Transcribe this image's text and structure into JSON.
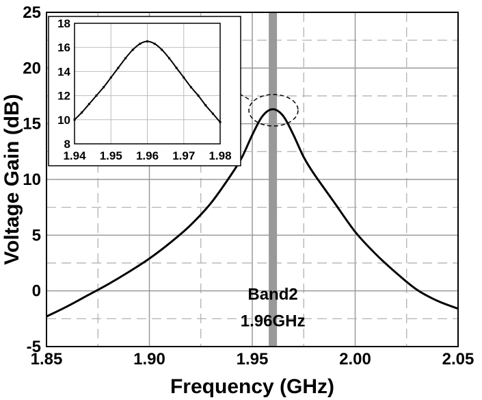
{
  "chart_data": [
    {
      "type": "line",
      "xlabel": "Frequency (GHz)",
      "ylabel": "Voltage Gain (dB)",
      "xlim": [
        1.85,
        2.05
      ],
      "ylim": [
        -5,
        25
      ],
      "x_ticks": [
        "1.85",
        "1.90",
        "1.95",
        "2.00",
        "2.05"
      ],
      "y_ticks": [
        "-5",
        "0",
        "5",
        "10",
        "15",
        "20",
        "25"
      ],
      "grid": true,
      "series": [
        {
          "x": [
            1.85,
            1.86,
            1.87,
            1.88,
            1.89,
            1.9,
            1.91,
            1.92,
            1.93,
            1.94,
            1.945,
            1.95,
            1.955,
            1.96,
            1.965,
            1.97,
            1.975,
            1.98,
            1.99,
            2.0,
            2.01,
            2.02,
            2.03,
            2.04,
            2.05
          ],
          "y": [
            -2.3,
            -1.4,
            -0.4,
            0.6,
            1.7,
            2.9,
            4.3,
            5.9,
            7.9,
            10.5,
            12.0,
            14.0,
            15.7,
            16.3,
            15.7,
            14.0,
            12.0,
            10.5,
            7.9,
            5.3,
            3.3,
            1.6,
            0.1,
            -0.9,
            -1.6
          ],
          "color": "#000000"
        }
      ],
      "annotations": [
        {
          "text": "Band2",
          "x": 1.96
        },
        {
          "text": "1.96GHz",
          "x": 1.96
        }
      ],
      "highlight_band": {
        "x": [
          1.958,
          1.962
        ],
        "color": "#999999"
      }
    },
    {
      "type": "line",
      "inset": true,
      "xlim": [
        1.94,
        1.98
      ],
      "ylim": [
        8,
        18
      ],
      "x_ticks": [
        "1.94",
        "1.95",
        "1.96",
        "1.97",
        "1.98"
      ],
      "y_ticks": [
        "8",
        "10",
        "12",
        "14",
        "16",
        "18"
      ],
      "grid": true,
      "series": [
        {
          "x": [
            1.94,
            1.942,
            1.944,
            1.946,
            1.948,
            1.95,
            1.952,
            1.954,
            1.956,
            1.958,
            1.96,
            1.962,
            1.964,
            1.966,
            1.968,
            1.97,
            1.972,
            1.974,
            1.976,
            1.978,
            1.98
          ],
          "y": [
            10.0,
            10.6,
            11.3,
            12.0,
            12.7,
            13.5,
            14.3,
            15.1,
            15.8,
            16.3,
            16.5,
            16.3,
            15.8,
            15.1,
            14.3,
            13.5,
            12.7,
            12.0,
            11.2,
            10.5,
            9.8
          ],
          "color": "#000000"
        }
      ]
    }
  ]
}
